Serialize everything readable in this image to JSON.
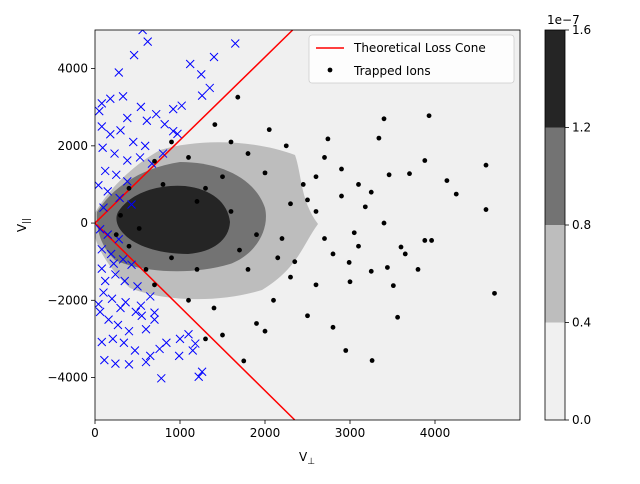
{
  "chart_data": {
    "type": "scatter",
    "title": "",
    "xlabel": "V",
    "xlabel_sub": "⊥",
    "ylabel": "V",
    "ylabel_sub": "||",
    "xlim": [
      0,
      5000
    ],
    "ylim": [
      -5100,
      5000
    ],
    "x_ticks": [
      0,
      1000,
      2000,
      3000,
      4000
    ],
    "x_tick_labels": [
      "0",
      "1000",
      "2000",
      "3000",
      "4000"
    ],
    "y_ticks": [
      -4000,
      -2000,
      0,
      2000,
      4000
    ],
    "y_tick_labels": [
      "−4000",
      "−2000",
      "0",
      "2000",
      "4000"
    ],
    "grid": false,
    "legend_position": "upper-right",
    "legend": [
      {
        "label": "Theoretical Loss Cone",
        "style": "line",
        "color": "#ff0000"
      },
      {
        "label": "Trapped Ions",
        "style": "dot",
        "color": "#000000"
      }
    ],
    "loss_cone": {
      "slope_pos": 2.15,
      "slope_neg": -2.17,
      "color": "#ff0000"
    },
    "density_contours": {
      "levels": [
        0.0,
        0.4,
        0.8,
        1.2,
        1.6
      ],
      "colors": [
        "#f0f0f0",
        "#bdbdbd",
        "#737373",
        "#252525"
      ],
      "colorbar_ticks": [
        "0.0",
        "0.4",
        "0.8",
        "1.2",
        "1.6"
      ],
      "colorbar_exponent": "1e−7"
    },
    "series": [
      {
        "name": "Trapped Ions",
        "marker": "dot",
        "color": "#000000",
        "points": [
          [
            520,
            -140
          ],
          [
            1200,
            560
          ],
          [
            2150,
            -900
          ],
          [
            3440,
            -1150
          ],
          [
            4140,
            1100
          ],
          [
            4700,
            -1820
          ],
          [
            3880,
            1620
          ],
          [
            3930,
            2780
          ],
          [
            3340,
            2200
          ],
          [
            3460,
            1250
          ],
          [
            3700,
            1280
          ],
          [
            3180,
            420
          ],
          [
            3600,
            -620
          ],
          [
            3880,
            -450
          ],
          [
            3960,
            -450
          ],
          [
            3510,
            -1620
          ],
          [
            2990,
            -1020
          ],
          [
            3560,
            -2440
          ],
          [
            3260,
            -3560
          ],
          [
            3000,
            -1520
          ],
          [
            2800,
            -800
          ],
          [
            2600,
            1200
          ],
          [
            2900,
            1400
          ],
          [
            2740,
            2180
          ],
          [
            2050,
            2420
          ],
          [
            1680,
            3260
          ],
          [
            1410,
            2550
          ],
          [
            1600,
            2100
          ],
          [
            1800,
            1800
          ],
          [
            2250,
            2000
          ],
          [
            2450,
            1000
          ],
          [
            2700,
            -400
          ],
          [
            2300,
            -1400
          ],
          [
            2100,
            -2000
          ],
          [
            1900,
            -2600
          ],
          [
            1500,
            -2900
          ],
          [
            1750,
            -3570
          ],
          [
            1300,
            -3000
          ],
          [
            2500,
            -2400
          ],
          [
            2800,
            -2700
          ],
          [
            2950,
            -3300
          ],
          [
            3250,
            -1250
          ],
          [
            3800,
            -1200
          ],
          [
            3100,
            1000
          ],
          [
            2500,
            600
          ],
          [
            2200,
            -400
          ],
          [
            1800,
            -1200
          ],
          [
            1100,
            -2000
          ],
          [
            700,
            -1600
          ],
          [
            400,
            -600
          ],
          [
            300,
            200
          ],
          [
            400,
            900
          ],
          [
            700,
            1600
          ],
          [
            900,
            2100
          ],
          [
            1100,
            1700
          ],
          [
            1500,
            1200
          ],
          [
            1200,
            -1200
          ],
          [
            900,
            -900
          ],
          [
            1600,
            300
          ],
          [
            1900,
            -300
          ],
          [
            2350,
            -1000
          ],
          [
            2900,
            700
          ],
          [
            3100,
            -600
          ],
          [
            3400,
            0
          ],
          [
            2700,
            1700
          ],
          [
            3400,
            2700
          ],
          [
            3250,
            800
          ],
          [
            2600,
            -1600
          ],
          [
            2000,
            -2800
          ],
          [
            1400,
            -2200
          ],
          [
            600,
            -1200
          ],
          [
            250,
            -300
          ],
          [
            800,
            1000
          ],
          [
            1300,
            900
          ],
          [
            1700,
            -700
          ],
          [
            2300,
            500
          ],
          [
            2000,
            1300
          ],
          [
            2600,
            300
          ],
          [
            3050,
            -250
          ],
          [
            3650,
            -800
          ],
          [
            4600,
            350
          ],
          [
            4250,
            750
          ],
          [
            4600,
            1500
          ]
        ]
      },
      {
        "name": "",
        "marker": "x",
        "color": "#0000ff",
        "points": [
          [
            560,
            5000
          ],
          [
            460,
            4350
          ],
          [
            620,
            4700
          ],
          [
            1120,
            4120
          ],
          [
            1250,
            3850
          ],
          [
            1400,
            4300
          ],
          [
            1650,
            4650
          ],
          [
            280,
            3900
          ],
          [
            180,
            3220
          ],
          [
            330,
            3280
          ],
          [
            540,
            3010
          ],
          [
            80,
            3100
          ],
          [
            50,
            2900
          ],
          [
            380,
            2720
          ],
          [
            610,
            2650
          ],
          [
            720,
            2820
          ],
          [
            920,
            2950
          ],
          [
            1020,
            3040
          ],
          [
            1350,
            3500
          ],
          [
            1260,
            3300
          ],
          [
            80,
            2500
          ],
          [
            180,
            2300
          ],
          [
            300,
            2400
          ],
          [
            450,
            2100
          ],
          [
            590,
            2000
          ],
          [
            820,
            2560
          ],
          [
            920,
            2380
          ],
          [
            970,
            2310
          ],
          [
            90,
            1950
          ],
          [
            230,
            1800
          ],
          [
            380,
            1620
          ],
          [
            530,
            1700
          ],
          [
            670,
            1540
          ],
          [
            800,
            1800
          ],
          [
            120,
            1350
          ],
          [
            250,
            1250
          ],
          [
            380,
            1080
          ],
          [
            40,
            980
          ],
          [
            150,
            820
          ],
          [
            290,
            650
          ],
          [
            430,
            480
          ],
          [
            100,
            400
          ],
          [
            60,
            -160
          ],
          [
            150,
            -300
          ],
          [
            280,
            -420
          ],
          [
            80,
            -680
          ],
          [
            190,
            -800
          ],
          [
            330,
            -940
          ],
          [
            430,
            -1080
          ],
          [
            80,
            -1180
          ],
          [
            240,
            -1330
          ],
          [
            350,
            -1500
          ],
          [
            500,
            -1640
          ],
          [
            100,
            -1800
          ],
          [
            200,
            -1960
          ],
          [
            360,
            -2050
          ],
          [
            540,
            -2140
          ],
          [
            700,
            -2320
          ],
          [
            60,
            -2300
          ],
          [
            160,
            -2500
          ],
          [
            270,
            -2640
          ],
          [
            400,
            -2800
          ],
          [
            600,
            -2750
          ],
          [
            840,
            -3100
          ],
          [
            1000,
            -3000
          ],
          [
            1180,
            -3120
          ],
          [
            80,
            -3080
          ],
          [
            210,
            -3000
          ],
          [
            340,
            -3100
          ],
          [
            470,
            -3300
          ],
          [
            650,
            -3440
          ],
          [
            760,
            -3260
          ],
          [
            990,
            -3440
          ],
          [
            110,
            -3550
          ],
          [
            240,
            -3640
          ],
          [
            400,
            -3660
          ],
          [
            780,
            -4020
          ],
          [
            1220,
            -3980
          ],
          [
            1260,
            -3850
          ],
          [
            1100,
            -2880
          ],
          [
            700,
            -2500
          ],
          [
            480,
            -2300
          ],
          [
            40,
            -2100
          ],
          [
            120,
            -1500
          ],
          [
            220,
            -1050
          ],
          [
            300,
            -2200
          ],
          [
            550,
            -2400
          ],
          [
            650,
            -1900
          ],
          [
            1150,
            -3300
          ],
          [
            600,
            -3600
          ]
        ]
      }
    ]
  }
}
